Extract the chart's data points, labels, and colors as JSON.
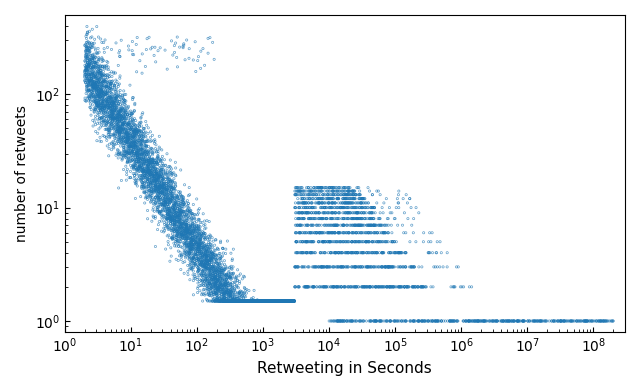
{
  "xlabel": "Retweeting in Seconds",
  "ylabel": "number of retweets",
  "xlim": [
    1,
    300000000.0
  ],
  "ylim": [
    0.8,
    500
  ],
  "marker_color": "#1f77b4",
  "marker_size": 2.5,
  "marker_facecolor": "none",
  "marker_linewidth": 0.5,
  "figsize": [
    6.4,
    3.91
  ],
  "dpi": 100,
  "alpha": 0.7,
  "seed": 42,
  "xlabel_fontsize": 11,
  "ylabel_fontsize": 10
}
